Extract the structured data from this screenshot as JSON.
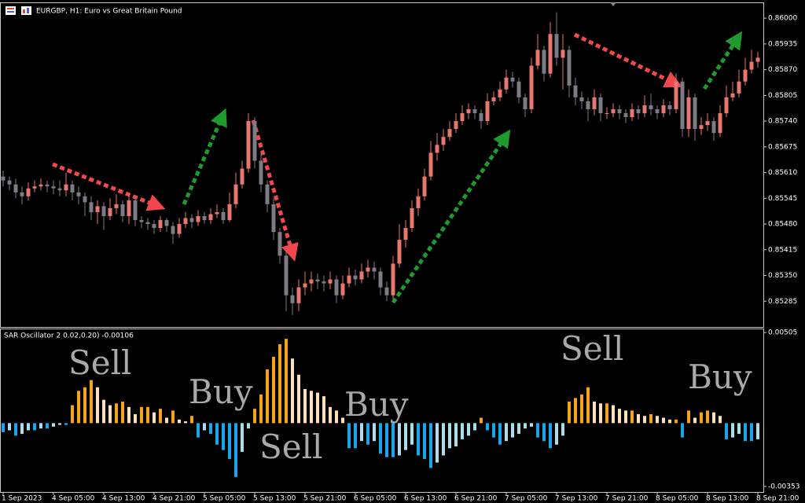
{
  "chart_data": [
    {
      "type": "candlestick",
      "title": "EURGBP, H1: Euro vs Great Britain Pound",
      "up_color": "#e8776f",
      "down_color": "#7c7c84",
      "categories": [
        "1 Sep 2023",
        null,
        null,
        null,
        null,
        null,
        null,
        null,
        "4 Sep 05:00",
        null,
        null,
        null,
        null,
        null,
        null,
        null,
        "4 Sep 13:00",
        null,
        null,
        null,
        null,
        null,
        null,
        null,
        "4 Sep 21:00",
        null,
        null,
        null,
        null,
        null,
        null,
        null,
        "5 Sep 05:00",
        null,
        null,
        null,
        null,
        null,
        null,
        null,
        "5 Sep 13:00",
        null,
        null,
        null,
        null,
        null,
        null,
        null,
        "5 Sep 21:00",
        null,
        null,
        null,
        null,
        null,
        null,
        null,
        "6 Sep 05:00",
        null,
        null,
        null,
        null,
        null,
        null,
        null,
        "6 Sep 13:00",
        null,
        null,
        null,
        null,
        null,
        null,
        null,
        "6 Sep 21:00",
        null,
        null,
        null,
        null,
        null,
        null,
        null,
        "7 Sep 05:00",
        null,
        null,
        null,
        null,
        null,
        null,
        null,
        "7 Sep 13:00",
        null,
        null,
        null,
        null,
        null,
        null,
        null,
        "7 Sep 21:00",
        null,
        null,
        null,
        null,
        null,
        null,
        null,
        "8 Sep 05:00",
        null,
        null,
        null,
        null,
        null,
        null,
        null,
        "8 Sep 13:00",
        null,
        null,
        null,
        null,
        null,
        null,
        null,
        "8 Sep 21:00"
      ],
      "open": [
        0.856,
        0.8559,
        0.8558,
        0.8556,
        0.8555,
        0.8557,
        0.85575,
        0.8558,
        0.85575,
        0.8557,
        0.85565,
        0.8558,
        0.8556,
        0.8555,
        0.85535,
        0.8551,
        0.85525,
        0.855,
        0.8552,
        0.8553,
        0.855,
        0.8554,
        0.8549,
        0.85485,
        0.8548,
        0.8547,
        0.8549,
        0.85475,
        0.85455,
        0.8548,
        0.85495,
        0.85485,
        0.855,
        0.8549,
        0.85505,
        0.8551,
        0.8549,
        0.8553,
        0.8558,
        0.8562,
        0.8574,
        0.8564,
        0.8558,
        0.8553,
        0.8546,
        0.854,
        0.853,
        0.8528,
        0.8532,
        0.8533,
        0.8534,
        0.85335,
        0.8533,
        0.8534,
        0.853,
        0.8533,
        0.8535,
        0.8534,
        0.8536,
        0.8537,
        0.8536,
        0.8532,
        0.853,
        0.8538,
        0.8544,
        0.8547,
        0.8552,
        0.8555,
        0.856,
        0.8566,
        0.8568,
        0.857,
        0.8572,
        0.8574,
        0.8576,
        0.8577,
        0.8576,
        0.8574,
        0.8579,
        0.858,
        0.8582,
        0.8585,
        0.8584,
        0.858,
        0.8577,
        0.8588,
        0.8592,
        0.8586,
        0.8596,
        0.859,
        0.8592,
        0.8583,
        0.858,
        0.8579,
        0.8577,
        0.858,
        0.8576,
        0.8576,
        0.8577,
        0.8576,
        0.8575,
        0.8577,
        0.8576,
        0.8578,
        0.8577,
        0.8576,
        0.8578,
        0.8577,
        0.8584,
        0.8572,
        0.858,
        0.8572,
        0.8573,
        0.8574,
        0.8571,
        0.8576,
        0.858,
        0.8581,
        0.8584,
        0.8587,
        0.8589
      ],
      "high": [
        0.85615,
        0.856,
        0.85595,
        0.85575,
        0.85585,
        0.8559,
        0.85595,
        0.8559,
        0.8559,
        0.8559,
        0.8561,
        0.8559,
        0.85575,
        0.8556,
        0.8555,
        0.8554,
        0.85535,
        0.85545,
        0.85555,
        0.8554,
        0.85555,
        0.8555,
        0.855,
        0.85495,
        0.8549,
        0.855,
        0.85495,
        0.85485,
        0.85495,
        0.8551,
        0.85505,
        0.85515,
        0.8551,
        0.8552,
        0.8553,
        0.8552,
        0.8556,
        0.8561,
        0.8564,
        0.8576,
        0.8575,
        0.8566,
        0.8559,
        0.85545,
        0.8547,
        0.8541,
        0.8532,
        0.8534,
        0.8536,
        0.8536,
        0.85355,
        0.8535,
        0.8536,
        0.8535,
        0.8535,
        0.8537,
        0.85365,
        0.8538,
        0.8539,
        0.85385,
        0.8537,
        0.85335,
        0.854,
        0.8548,
        0.8549,
        0.8554,
        0.8557,
        0.8562,
        0.8569,
        0.8571,
        0.8572,
        0.8574,
        0.8576,
        0.8578,
        0.85785,
        0.8578,
        0.8577,
        0.8581,
        0.85815,
        0.8584,
        0.8587,
        0.85865,
        0.8585,
        0.8581,
        0.859,
        0.8596,
        0.8593,
        0.8599,
        0.86015,
        0.8596,
        0.8593,
        0.8585,
        0.85815,
        0.858,
        0.8582,
        0.8581,
        0.85775,
        0.85785,
        0.8578,
        0.8577,
        0.85785,
        0.8578,
        0.85805,
        0.8581,
        0.8578,
        0.85795,
        0.8579,
        0.8586,
        0.8585,
        0.8582,
        0.8581,
        0.8575,
        0.8576,
        0.8575,
        0.8578,
        0.8583,
        0.8584,
        0.8587,
        0.859,
        0.8592,
        0.85915
      ],
      "low": [
        0.85575,
        0.85565,
        0.85545,
        0.8553,
        0.8554,
        0.8556,
        0.85565,
        0.8556,
        0.85555,
        0.8555,
        0.8555,
        0.8554,
        0.8553,
        0.855,
        0.8549,
        0.8548,
        0.85465,
        0.8549,
        0.85505,
        0.85485,
        0.8548,
        0.85475,
        0.8547,
        0.85465,
        0.85455,
        0.8546,
        0.8546,
        0.8543,
        0.85445,
        0.8547,
        0.8547,
        0.85475,
        0.8548,
        0.8548,
        0.85495,
        0.8548,
        0.85485,
        0.8552,
        0.8557,
        0.8561,
        0.8562,
        0.8556,
        0.8551,
        0.8544,
        0.8538,
        0.8526,
        0.8525,
        0.8526,
        0.853,
        0.8531,
        0.85315,
        0.8531,
        0.85315,
        0.8528,
        0.8529,
        0.8532,
        0.85325,
        0.8533,
        0.85345,
        0.8534,
        0.853,
        0.85285,
        0.8529,
        0.8537,
        0.8542,
        0.8546,
        0.855,
        0.8554,
        0.8559,
        0.8564,
        0.85665,
        0.8569,
        0.8571,
        0.8573,
        0.85745,
        0.85745,
        0.8572,
        0.8573,
        0.8578,
        0.8579,
        0.8581,
        0.85825,
        0.85785,
        0.8575,
        0.8576,
        0.8587,
        0.8584,
        0.8585,
        0.8588,
        0.8582,
        0.858,
        0.8578,
        0.8577,
        0.8574,
        0.85755,
        0.8574,
        0.85745,
        0.8575,
        0.85745,
        0.85735,
        0.8574,
        0.85745,
        0.8575,
        0.85755,
        0.85745,
        0.8575,
        0.85755,
        0.8576,
        0.857,
        0.857,
        0.8569,
        0.85705,
        0.85715,
        0.8569,
        0.857,
        0.8575,
        0.8579,
        0.858,
        0.8583,
        0.8586,
        0.85875
      ],
      "close": [
        0.8559,
        0.8558,
        0.8556,
        0.8555,
        0.8557,
        0.85575,
        0.8558,
        0.85575,
        0.8557,
        0.85565,
        0.8558,
        0.8556,
        0.8555,
        0.85535,
        0.8551,
        0.85525,
        0.855,
        0.8552,
        0.8553,
        0.855,
        0.8554,
        0.8549,
        0.85485,
        0.8548,
        0.8547,
        0.8549,
        0.85475,
        0.85455,
        0.8548,
        0.85495,
        0.85485,
        0.855,
        0.8549,
        0.85505,
        0.8551,
        0.8549,
        0.8553,
        0.8558,
        0.8562,
        0.8574,
        0.8564,
        0.8558,
        0.8553,
        0.8546,
        0.854,
        0.853,
        0.8528,
        0.8532,
        0.8533,
        0.8534,
        0.85335,
        0.8533,
        0.8534,
        0.853,
        0.8533,
        0.8535,
        0.8534,
        0.8536,
        0.8537,
        0.8536,
        0.8532,
        0.853,
        0.8538,
        0.8544,
        0.8547,
        0.8552,
        0.8555,
        0.856,
        0.8566,
        0.8568,
        0.857,
        0.8572,
        0.8574,
        0.8576,
        0.8577,
        0.8576,
        0.8574,
        0.8579,
        0.858,
        0.8582,
        0.8585,
        0.8584,
        0.858,
        0.8577,
        0.8588,
        0.8592,
        0.8586,
        0.8596,
        0.859,
        0.8592,
        0.8583,
        0.858,
        0.8579,
        0.8577,
        0.858,
        0.8576,
        0.8576,
        0.8577,
        0.8576,
        0.8575,
        0.8577,
        0.8576,
        0.8578,
        0.8577,
        0.8576,
        0.8578,
        0.8577,
        0.8584,
        0.8572,
        0.858,
        0.8572,
        0.8573,
        0.8574,
        0.8571,
        0.8576,
        0.858,
        0.8581,
        0.8584,
        0.8587,
        0.8589,
        0.859
      ],
      "ylim": [
        0.8522,
        0.86038
      ],
      "yticks": [
        {
          "value": 0.86,
          "label": "0.86000"
        },
        0.85935,
        {
          "value": 0.8587,
          "label": "0.85870"
        },
        0.85805,
        {
          "value": 0.8574,
          "label": "0.85740"
        },
        0.85675,
        {
          "value": 0.8561,
          "label": "0.85610"
        },
        0.85545,
        {
          "value": 0.8548,
          "label": "0.85480"
        },
        0.85415,
        {
          "value": 0.8535,
          "label": "0.85350"
        },
        0.85285
      ]
    },
    {
      "type": "bar",
      "title": "SAR Oscillator 2 0.02,0.20) -0.00106",
      "colors": [
        "#f7a21b",
        "#fde1bd",
        "#1aa6e8",
        "#acdde9"
      ],
      "values": [
        -0.0005,
        -0.0004,
        -0.0007,
        -0.0006,
        -0.0004,
        -0.0004,
        -0.0003,
        -0.0003,
        -0.0002,
        -0.0001,
        -0.0001,
        0.001,
        0.0018,
        0.002,
        0.0024,
        0.002,
        0.0013,
        0.001,
        0.0011,
        0.0012,
        0.0009,
        0.0005,
        0.0009,
        0.0009,
        0.0006,
        0.0008,
        0.0003,
        0.0007,
        0.0002,
        0.0001,
        0.0004,
        -0.0008,
        -0.0004,
        -0.0006,
        -0.0012,
        -0.0015,
        -0.002,
        -0.003,
        -0.0016,
        -0.0003,
        0.0008,
        0.0016,
        0.003,
        0.0037,
        0.0044,
        0.0047,
        0.0036,
        0.0027,
        0.0019,
        0.0018,
        0.0017,
        0.0015,
        0.0009,
        0.0007,
        0.0003,
        -0.0014,
        -0.0014,
        -0.001,
        -0.0012,
        -0.001,
        -0.0017,
        -0.0019,
        -0.0019,
        -0.0018,
        -0.0015,
        -0.0012,
        -0.0018,
        -0.002,
        -0.0025,
        -0.0022,
        -0.0018,
        -0.0014,
        -0.0013,
        -0.0009,
        -0.0007,
        -0.0004,
        0.0003,
        -0.0004,
        -0.0008,
        -0.0012,
        -0.001,
        -0.0008,
        -0.0006,
        -0.0003,
        -0.0002,
        -0.0008,
        -0.001,
        -0.0014,
        -0.0012,
        -0.0007,
        0.0012,
        0.0014,
        0.0016,
        0.002,
        0.0012,
        0.0011,
        0.0011,
        0.001,
        0.0008,
        0.0007,
        0.0007,
        0.0005,
        0.0004,
        0.0005,
        0.0004,
        0.0003,
        0.0002,
        0.0002,
        -0.0008,
        0.0007,
        0.0003,
        0.0006,
        0.0007,
        0.0006,
        0.0004,
        -0.0009,
        -0.0008,
        -0.0006,
        -0.001,
        -0.001,
        -0.0009
      ],
      "ylim": [
        -0.00384,
        0.00523
      ],
      "yticks": [
        0.00505,
        -0.00353
      ],
      "annotations": [
        "Sell",
        "Buy",
        "Sell",
        "Buy",
        "Sell",
        "Buy"
      ]
    }
  ]
}
